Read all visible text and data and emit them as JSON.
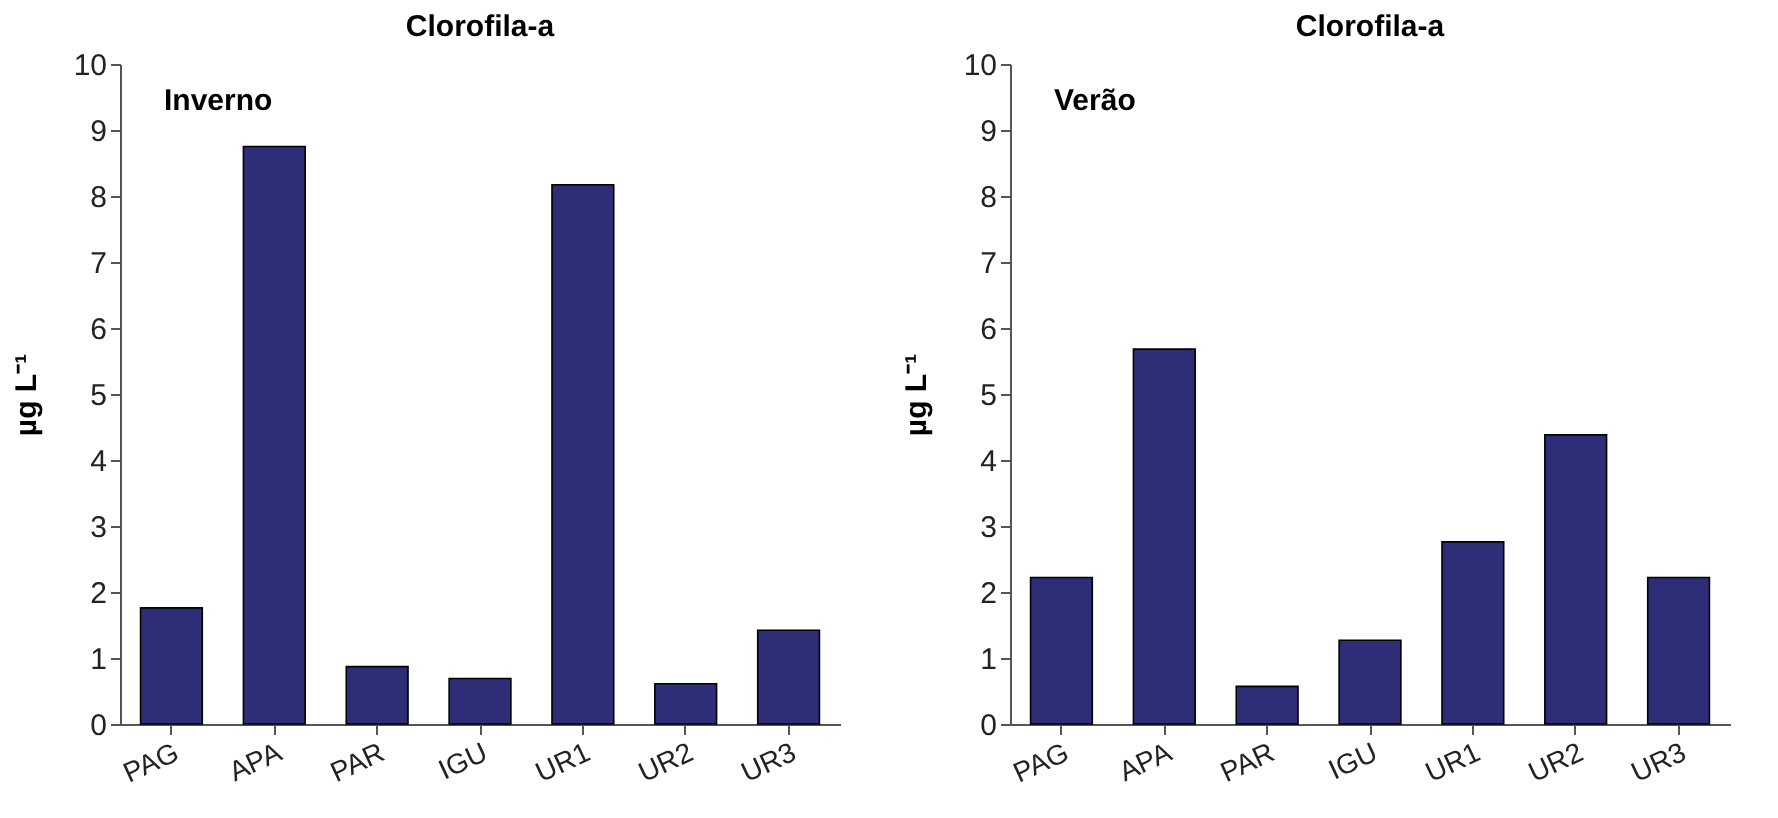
{
  "chart_data": [
    {
      "type": "bar",
      "title": "Clorofila-a",
      "ylabel": "µg L⁻¹",
      "annotations": [
        "Inverno"
      ],
      "categories": [
        "PAG",
        "APA",
        "PAR",
        "IGU",
        "UR1",
        "UR2",
        "UR3"
      ],
      "values": [
        1.76,
        8.75,
        0.87,
        0.69,
        8.17,
        0.61,
        1.42
      ],
      "color": "#2d2d78",
      "ylim": [
        0,
        10
      ],
      "yticks": [
        0,
        1,
        2,
        3,
        4,
        5,
        6,
        7,
        8,
        9,
        10
      ],
      "grid": false
    },
    {
      "type": "bar",
      "title": "Clorofila-a",
      "ylabel": "µg L⁻¹",
      "annotations": [
        "Verão"
      ],
      "categories": [
        "PAG",
        "APA",
        "PAR",
        "IGU",
        "UR1",
        "UR2",
        "UR3"
      ],
      "values": [
        2.22,
        5.68,
        0.57,
        1.27,
        2.76,
        4.38,
        2.22
      ],
      "color": "#2d2d78",
      "ylim": [
        0,
        10
      ],
      "yticks": [
        0,
        1,
        2,
        3,
        4,
        5,
        6,
        7,
        8,
        9,
        10
      ],
      "grid": false
    }
  ]
}
